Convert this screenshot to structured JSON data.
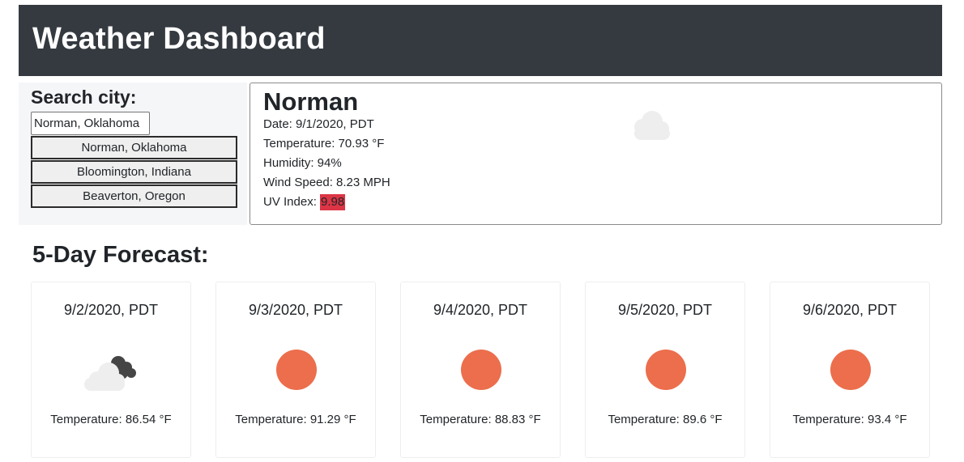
{
  "header": {
    "title": "Weather Dashboard"
  },
  "search": {
    "title": "Search city:",
    "input_value": "Norman, Oklahoma",
    "history": [
      "Norman, Oklahoma",
      "Bloomington, Indiana",
      "Beaverton, Oregon"
    ]
  },
  "current": {
    "city": "Norman",
    "date": "Date: 9/1/2020, PDT",
    "temperature": "Temperature: 70.93 °F",
    "humidity": "Humidity: 94%",
    "wind": "Wind Speed: 8.23 MPH",
    "uv_label": "UV Index: ",
    "uv_value": "9.98",
    "uv_color": "#dc3545",
    "icon": "cloud-icon"
  },
  "forecast": {
    "title": "5-Day Forecast:",
    "days": [
      {
        "date": "9/2/2020, PDT",
        "temp": "Temperature: 86.54 °F",
        "icon": "cloud-sun-dark-clouds-icon"
      },
      {
        "date": "9/3/2020, PDT",
        "temp": "Temperature: 91.29 °F",
        "icon": "sun-icon"
      },
      {
        "date": "9/4/2020, PDT",
        "temp": "Temperature: 88.83 °F",
        "icon": "sun-icon"
      },
      {
        "date": "9/5/2020, PDT",
        "temp": "Temperature: 89.6 °F",
        "icon": "sun-icon"
      },
      {
        "date": "9/6/2020, PDT",
        "temp": "Temperature: 93.4 °F",
        "icon": "sun-icon"
      }
    ]
  },
  "colors": {
    "header_bg": "#343a40",
    "sun": "#ec6e4c",
    "uv_high": "#dc3545"
  }
}
